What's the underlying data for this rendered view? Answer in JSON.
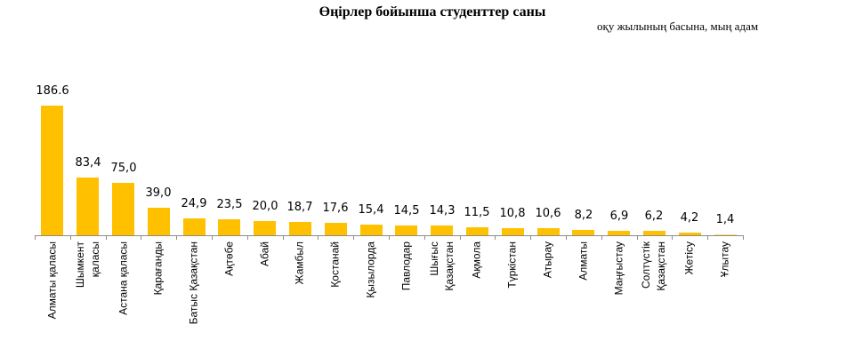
{
  "title": "Өңірлер бойынша студенттер саны",
  "subtitle": "оқу жылының басына, мың адам",
  "chart_data": {
    "type": "bar",
    "title": "Өңірлер бойынша студенттер саны",
    "subtitle": "оқу жылының басына, мың адам",
    "xlabel": "",
    "ylabel": "",
    "ylim": [
      0,
      200
    ],
    "grid": false,
    "legend": "none",
    "bar_color": "#ffc000",
    "categories": [
      "Алматы қаласы",
      "Шымкент\nқаласы",
      "Астана қаласы",
      "Қарағанды",
      "Батыс Қазақстан",
      "Ақтөбе",
      "Абай",
      "Жамбыл",
      "Қостанай",
      "Қызылорда",
      "Павлодар",
      "Шығыс\nҚазақстан",
      "Ақмола",
      "Түркістан",
      "Атырау",
      "Алматы",
      "Маңғыстау",
      "Солтүстік\nҚазақстан",
      "Жетісу",
      "Ұлытау"
    ],
    "values": [
      186.6,
      83.4,
      75.0,
      39.0,
      24.9,
      23.5,
      20.0,
      18.7,
      17.6,
      15.4,
      14.5,
      14.3,
      11.5,
      10.8,
      10.6,
      8.2,
      6.9,
      6.2,
      4.2,
      1.4
    ],
    "labels": [
      "186.6",
      "83,4",
      "75,0",
      "39,0",
      "24,9",
      "23,5",
      "20,0",
      "18,7",
      "17,6",
      "15,4",
      "14,5",
      "14,3",
      "11,5",
      "10,8",
      "10,6",
      "8,2",
      "6,9",
      "6,2",
      "4,2",
      "1,4"
    ]
  }
}
